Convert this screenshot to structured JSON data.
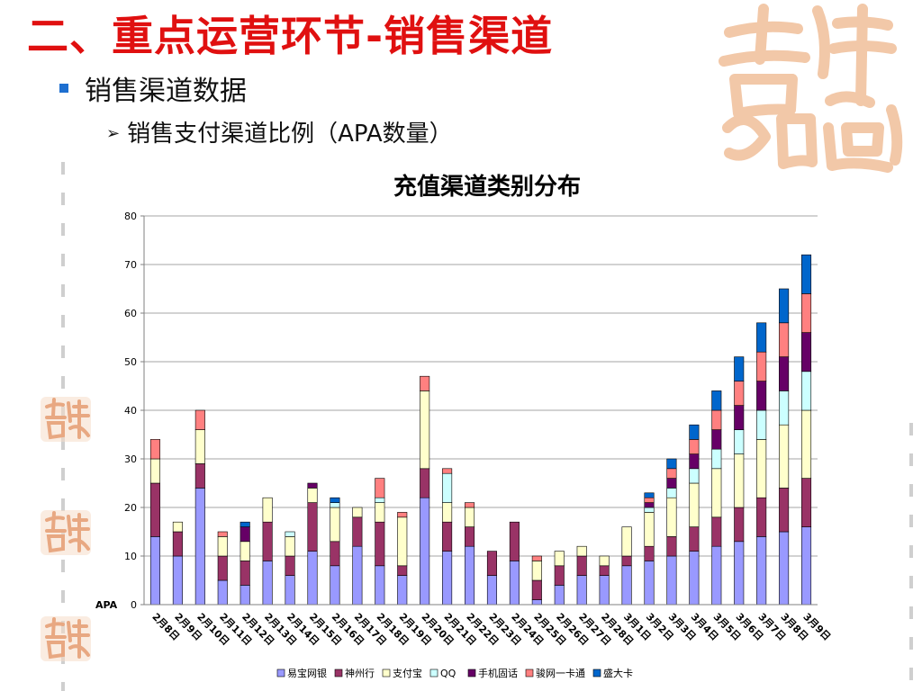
{
  "slide": {
    "title": "二、重点运营环节-销售渠道",
    "bullet_l1": "销售渠道数据",
    "bullet_l2": "销售支付渠道比例（APA数量）"
  },
  "colors": {
    "title": "#e01010",
    "bullet": "#1e6fd0",
    "logo": "#f2c8a8"
  },
  "icons": {
    "logo": "jixiang-calligraphy-logo",
    "stamp": "jixiang-seal-stamp"
  },
  "chart_data": {
    "type": "bar",
    "stacked": true,
    "title": "充值渠道类别分布",
    "ylabel": "APA",
    "ylim": [
      0,
      80
    ],
    "yticks": [
      0,
      10,
      20,
      30,
      40,
      50,
      60,
      70,
      80
    ],
    "grid": true,
    "legend_position": "bottom",
    "categories": [
      "2月8日",
      "2月9日",
      "2月10日",
      "2月11日",
      "2月12日",
      "2月13日",
      "2月14日",
      "2月15日",
      "2月16日",
      "2月17日",
      "2月18日",
      "2月19日",
      "2月20日",
      "2月21日",
      "2月22日",
      "2月23日",
      "2月24日",
      "2月25日",
      "2月26日",
      "2月27日",
      "2月28日",
      "3月1日",
      "3月2日",
      "3月3日",
      "3月4日",
      "3月5日",
      "3月6日",
      "3月7日",
      "3月8日",
      "3月9日"
    ],
    "series": [
      {
        "name": "易宝网银",
        "color": "#9999ff",
        "values": [
          14,
          10,
          24,
          5,
          4,
          9,
          6,
          11,
          8,
          12,
          8,
          6,
          22,
          11,
          12,
          6,
          9,
          1,
          4,
          6,
          6,
          8,
          9,
          10,
          11,
          12,
          13,
          14,
          15,
          16
        ]
      },
      {
        "name": "神州行",
        "color": "#993366",
        "values": [
          11,
          5,
          5,
          5,
          5,
          8,
          4,
          10,
          5,
          6,
          9,
          2,
          6,
          6,
          4,
          5,
          8,
          4,
          4,
          4,
          2,
          2,
          3,
          4,
          5,
          6,
          7,
          8,
          9,
          10
        ]
      },
      {
        "name": "支付宝",
        "color": "#ffffcc",
        "values": [
          5,
          2,
          7,
          4,
          4,
          5,
          4,
          3,
          7,
          2,
          4,
          10,
          16,
          4,
          4,
          0,
          0,
          4,
          3,
          2,
          2,
          6,
          7,
          8,
          9,
          10,
          11,
          12,
          13,
          14
        ]
      },
      {
        "name": "QQ",
        "color": "#ccffff",
        "values": [
          0,
          0,
          0,
          0,
          0,
          0,
          1,
          0,
          1,
          0,
          1,
          0,
          0,
          6,
          0,
          0,
          0,
          0,
          0,
          0,
          0,
          0,
          1,
          2,
          3,
          4,
          5,
          6,
          7,
          8
        ]
      },
      {
        "name": "手机固话",
        "color": "#660066",
        "values": [
          0,
          0,
          0,
          0,
          3,
          0,
          0,
          1,
          0,
          0,
          0,
          0,
          0,
          0,
          0,
          0,
          0,
          0,
          0,
          0,
          0,
          0,
          1,
          2,
          3,
          4,
          5,
          6,
          7,
          8
        ]
      },
      {
        "name": "骏网一卡通",
        "color": "#ff8080",
        "values": [
          4,
          0,
          4,
          1,
          0,
          0,
          0,
          0,
          0,
          0,
          4,
          1,
          3,
          1,
          1,
          0,
          0,
          1,
          0,
          0,
          0,
          0,
          1,
          2,
          3,
          4,
          5,
          6,
          7,
          8
        ]
      },
      {
        "name": "盛大卡",
        "color": "#0066cc",
        "values": [
          0,
          0,
          0,
          0,
          1,
          0,
          0,
          0,
          1,
          0,
          0,
          0,
          0,
          0,
          0,
          0,
          0,
          0,
          0,
          0,
          0,
          0,
          1,
          2,
          3,
          4,
          5,
          6,
          7,
          8
        ]
      }
    ]
  }
}
